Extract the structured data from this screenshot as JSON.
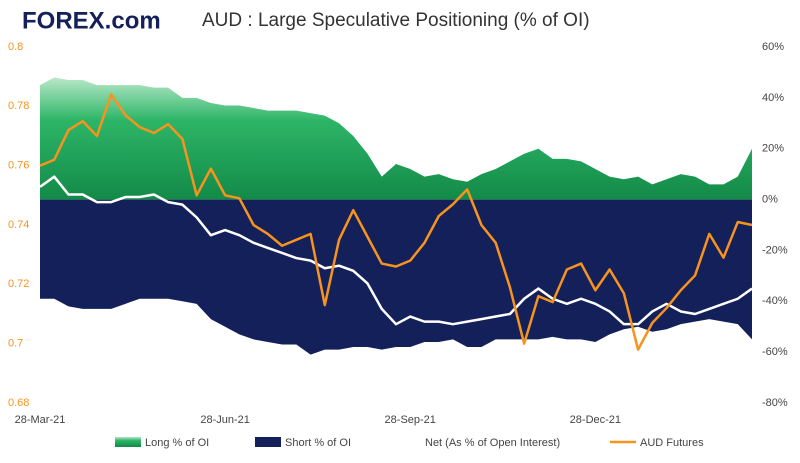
{
  "chart_data": {
    "type": "area-line",
    "logo": "FOREX.com",
    "title": "AUD : Large Speculative Positioning (% of OI)",
    "categories": [
      "28-Mar-21",
      null,
      null,
      null,
      null,
      null,
      null,
      null,
      null,
      null,
      null,
      null,
      null,
      "28-Jun-21",
      null,
      null,
      null,
      null,
      null,
      null,
      null,
      null,
      null,
      null,
      null,
      null,
      "28-Sep-21",
      null,
      null,
      null,
      null,
      null,
      null,
      null,
      null,
      null,
      null,
      null,
      null,
      "28-Dec-21",
      null,
      null,
      null,
      null,
      null,
      null,
      null,
      null,
      null,
      null,
      null
    ],
    "ylim": [
      0.68,
      0.8
    ],
    "yticks": [
      0.68,
      0.7,
      0.72,
      0.74,
      0.76,
      0.78,
      0.8
    ],
    "y2lim": [
      -80,
      60
    ],
    "y2ticks": [
      {
        "value": -80,
        "label": "-80%"
      },
      {
        "value": -60,
        "label": "-60%"
      },
      {
        "value": -40,
        "label": "-40%"
      },
      {
        "value": -20,
        "label": "-20%"
      },
      {
        "value": 0,
        "label": "0%"
      },
      {
        "value": 20,
        "label": "20%"
      },
      {
        "value": 40,
        "label": "40%"
      },
      {
        "value": 60,
        "label": "60%"
      }
    ],
    "series": [
      {
        "name": "Long % of OI",
        "kind": "area",
        "axis": "y2",
        "color": "#1fa35a",
        "values": [
          45,
          48,
          47,
          47,
          45,
          45,
          45,
          45,
          44,
          44,
          40,
          40,
          38,
          37,
          37,
          36,
          35,
          35,
          35,
          34,
          33,
          30,
          25,
          18,
          9,
          14,
          12,
          9,
          10,
          8,
          7,
          10,
          12,
          15,
          18,
          20,
          16,
          16,
          15,
          12,
          9,
          8,
          9,
          6,
          8,
          10,
          9,
          6,
          6,
          9,
          20
        ]
      },
      {
        "name": "Short % of OI",
        "kind": "area",
        "axis": "y2",
        "color": "#13205a",
        "values": [
          -39,
          -39,
          -42,
          -43,
          -43,
          -43,
          -41,
          -39,
          -39,
          -39,
          -40,
          -41,
          -47,
          -50,
          -53,
          -55,
          -56,
          -57,
          -57,
          -61,
          -59,
          -59,
          -58,
          -58,
          -59,
          -58,
          -58,
          -56,
          -56,
          -55,
          -58,
          -58,
          -55,
          -55,
          -55,
          -55,
          -54,
          -55,
          -55,
          -56,
          -53,
          -51,
          -50,
          -52,
          -51,
          -49,
          -48,
          -47,
          -48,
          -49,
          -55
        ]
      },
      {
        "name": "Net (As % of Open Interest)",
        "kind": "line",
        "axis": "y2",
        "color": "#ffffff",
        "values": [
          5,
          9,
          2,
          2,
          -1,
          -1,
          1,
          1,
          2,
          -1,
          -2,
          -7,
          -14,
          -12,
          -14,
          -17,
          -19,
          -21,
          -23,
          -24,
          -27,
          -26,
          -28,
          -33,
          -43,
          -49,
          -46,
          -48,
          -48,
          -49,
          -48,
          -47,
          -46,
          -45,
          -39,
          -35,
          -39,
          -41,
          -39,
          -41,
          -44,
          -49,
          -49,
          -44,
          -41,
          -44,
          -45,
          -43,
          -41,
          -39,
          -35
        ]
      },
      {
        "name": "AUD Futures",
        "kind": "line",
        "axis": "y",
        "color": "#f7931e",
        "values": [
          0.76,
          0.762,
          0.772,
          0.775,
          0.77,
          0.784,
          0.777,
          0.773,
          0.771,
          0.774,
          0.769,
          0.75,
          0.759,
          0.75,
          0.749,
          0.74,
          0.737,
          0.733,
          0.735,
          0.737,
          0.713,
          0.735,
          0.745,
          0.736,
          0.727,
          0.726,
          0.728,
          0.734,
          0.743,
          0.747,
          0.752,
          0.74,
          0.734,
          0.719,
          0.7,
          0.716,
          0.714,
          0.725,
          0.727,
          0.718,
          0.725,
          0.717,
          0.698,
          0.707,
          0.712,
          0.718,
          0.723,
          0.737,
          0.729,
          0.741,
          0.74
        ]
      }
    ]
  }
}
